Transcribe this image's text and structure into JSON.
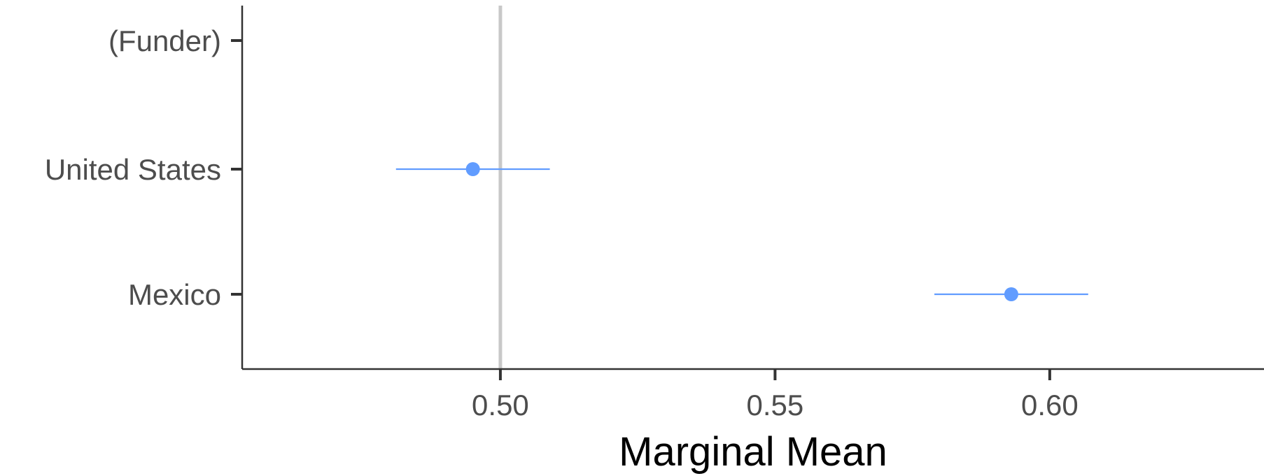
{
  "chart_data": {
    "type": "scatter",
    "title": "",
    "xlabel": "Marginal Mean",
    "ylabel": "",
    "xlim": [
      0.453,
      0.639
    ],
    "xticks": [
      0.5,
      0.55,
      0.6
    ],
    "xtick_labels": [
      "0.50",
      "0.55",
      "0.60"
    ],
    "categories": [
      "(Funder)",
      "United States",
      "Mexico"
    ],
    "reference_line_x": 0.5,
    "grid": false,
    "legend": "none",
    "point_color": "#619CFF",
    "reference_color": "#c8c8c8",
    "points": [
      {
        "category": "United States",
        "estimate": 0.495,
        "lower": 0.481,
        "upper": 0.509
      },
      {
        "category": "Mexico",
        "estimate": 0.593,
        "lower": 0.579,
        "upper": 0.607
      }
    ]
  }
}
